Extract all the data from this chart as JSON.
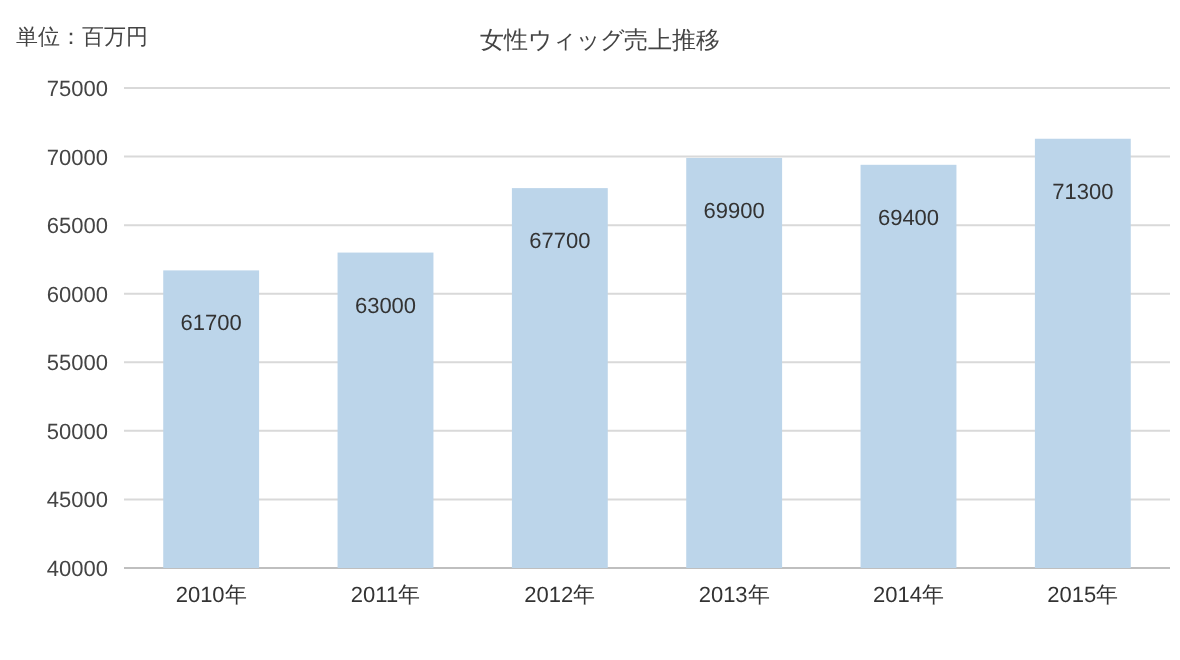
{
  "chart_data": {
    "type": "bar",
    "title": "女性ウィッグ売上推移",
    "ylabel": "単位：百万円",
    "categories": [
      "2010年",
      "2011年",
      "2012年",
      "2013年",
      "2014年",
      "2015年"
    ],
    "values": [
      61700,
      63000,
      67700,
      69900,
      69400,
      71300
    ],
    "color": "#bcd5ea",
    "ylim": [
      40000,
      75000
    ],
    "yticks": [
      40000,
      45000,
      50000,
      55000,
      60000,
      65000,
      70000,
      75000
    ],
    "grid": "y",
    "data_labels": true
  }
}
